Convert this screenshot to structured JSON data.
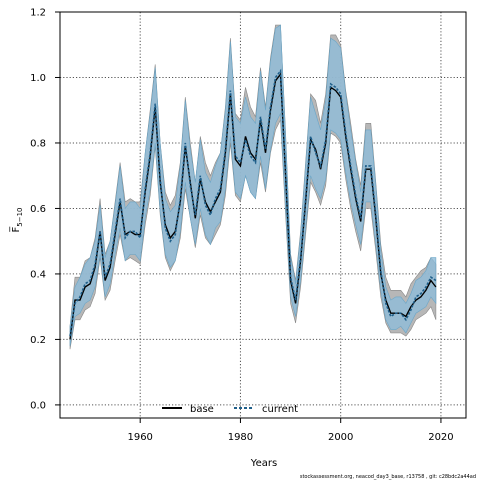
{
  "chart_data": {
    "type": "area",
    "xlabel": "Years",
    "ylabel": "F̅",
    "ylabel_sub": "5−10",
    "xlim": [
      1944,
      2025
    ],
    "ylim": [
      -0.04,
      1.2
    ],
    "x_ticks": [
      1960,
      1980,
      2000,
      2020
    ],
    "y_ticks": [
      0.0,
      0.2,
      0.4,
      0.6,
      0.8,
      1.0,
      1.2
    ],
    "y_tick_labels": [
      "0.0",
      "0.2",
      "0.4",
      "0.6",
      "0.8",
      "1.0",
      "1.2"
    ],
    "grid": true,
    "legend_position": "bottom-center",
    "footnote": "stockassessment.org, neacod_day3_base, r13758 , git: c28bdc2a44ad",
    "colors": {
      "base_band": "#aaaaaa",
      "current_band": "#8fbcd8",
      "base_line": "#000000",
      "current_line": "#1f5f8a"
    },
    "x": [
      1946,
      1947,
      1948,
      1949,
      1950,
      1951,
      1952,
      1953,
      1954,
      1955,
      1956,
      1957,
      1958,
      1959,
      1960,
      1961,
      1962,
      1963,
      1964,
      1965,
      1966,
      1967,
      1968,
      1969,
      1970,
      1971,
      1972,
      1973,
      1974,
      1975,
      1976,
      1977,
      1978,
      1979,
      1980,
      1981,
      1982,
      1983,
      1984,
      1985,
      1986,
      1987,
      1988,
      1989,
      1990,
      1991,
      1992,
      1993,
      1994,
      1995,
      1996,
      1997,
      1998,
      1999,
      2000,
      2001,
      2002,
      2003,
      2004,
      2005,
      2006,
      2007,
      2008,
      2009,
      2010,
      2011,
      2012,
      2013,
      2014,
      2015,
      2016,
      2017,
      2018,
      2019
    ],
    "series": [
      {
        "name": "base",
        "values": [
          0.2,
          0.32,
          0.32,
          0.36,
          0.37,
          0.42,
          0.53,
          0.38,
          0.42,
          0.52,
          0.62,
          0.52,
          0.53,
          0.52,
          0.52,
          0.65,
          0.76,
          0.91,
          0.68,
          0.55,
          0.51,
          0.53,
          0.62,
          0.79,
          0.68,
          0.57,
          0.69,
          0.62,
          0.59,
          0.62,
          0.65,
          0.77,
          0.95,
          0.75,
          0.73,
          0.82,
          0.77,
          0.75,
          0.87,
          0.77,
          0.9,
          0.99,
          1.01,
          0.7,
          0.38,
          0.31,
          0.44,
          0.62,
          0.81,
          0.78,
          0.72,
          0.8,
          0.97,
          0.96,
          0.94,
          0.82,
          0.72,
          0.63,
          0.56,
          0.72,
          0.72,
          0.57,
          0.4,
          0.32,
          0.28,
          0.28,
          0.28,
          0.27,
          0.3,
          0.32,
          0.33,
          0.35,
          0.38,
          0.36
        ]
      },
      {
        "name": "current",
        "values": [
          0.21,
          0.31,
          0.33,
          0.37,
          0.38,
          0.43,
          0.53,
          0.39,
          0.43,
          0.53,
          0.63,
          0.51,
          0.53,
          0.53,
          0.51,
          0.66,
          0.77,
          0.92,
          0.69,
          0.54,
          0.5,
          0.52,
          0.63,
          0.8,
          0.67,
          0.58,
          0.7,
          0.61,
          0.58,
          0.63,
          0.66,
          0.78,
          0.96,
          0.76,
          0.74,
          0.81,
          0.76,
          0.74,
          0.88,
          0.78,
          0.91,
          1.0,
          1.02,
          0.71,
          0.39,
          0.32,
          0.45,
          0.63,
          0.82,
          0.77,
          0.73,
          0.81,
          0.98,
          0.97,
          0.95,
          0.83,
          0.73,
          0.64,
          0.57,
          0.73,
          0.73,
          0.58,
          0.41,
          0.31,
          0.27,
          0.28,
          0.28,
          0.26,
          0.29,
          0.33,
          0.34,
          0.36,
          0.39,
          0.38
        ]
      }
    ],
    "bands": [
      {
        "name": "base",
        "lower": [
          0.17,
          0.26,
          0.26,
          0.29,
          0.3,
          0.34,
          0.45,
          0.32,
          0.35,
          0.44,
          0.52,
          0.44,
          0.45,
          0.44,
          0.43,
          0.55,
          0.64,
          0.79,
          0.58,
          0.45,
          0.41,
          0.44,
          0.51,
          0.66,
          0.57,
          0.48,
          0.58,
          0.51,
          0.49,
          0.52,
          0.55,
          0.64,
          0.8,
          0.64,
          0.62,
          0.7,
          0.65,
          0.63,
          0.74,
          0.65,
          0.77,
          0.84,
          0.87,
          0.58,
          0.31,
          0.25,
          0.36,
          0.52,
          0.68,
          0.65,
          0.61,
          0.67,
          0.83,
          0.82,
          0.8,
          0.69,
          0.6,
          0.53,
          0.47,
          0.6,
          0.6,
          0.47,
          0.33,
          0.25,
          0.22,
          0.22,
          0.22,
          0.21,
          0.23,
          0.26,
          0.27,
          0.28,
          0.3,
          0.26
        ],
        "upper": [
          0.24,
          0.39,
          0.39,
          0.44,
          0.45,
          0.51,
          0.63,
          0.46,
          0.5,
          0.62,
          0.74,
          0.62,
          0.63,
          0.62,
          0.62,
          0.77,
          0.9,
          1.04,
          0.8,
          0.65,
          0.61,
          0.64,
          0.74,
          0.94,
          0.8,
          0.68,
          0.82,
          0.74,
          0.7,
          0.74,
          0.77,
          0.91,
          1.12,
          0.89,
          0.87,
          0.97,
          0.91,
          0.88,
          1.03,
          0.91,
          1.06,
          1.16,
          1.16,
          0.83,
          0.46,
          0.38,
          0.53,
          0.74,
          0.95,
          0.93,
          0.86,
          0.95,
          1.13,
          1.13,
          1.1,
          0.96,
          0.86,
          0.75,
          0.67,
          0.86,
          0.86,
          0.68,
          0.49,
          0.39,
          0.35,
          0.35,
          0.35,
          0.33,
          0.37,
          0.39,
          0.41,
          0.42,
          0.45,
          0.43
        ]
      },
      {
        "name": "current",
        "lower": [
          0.18,
          0.27,
          0.28,
          0.31,
          0.32,
          0.36,
          0.46,
          0.33,
          0.37,
          0.46,
          0.54,
          0.44,
          0.46,
          0.46,
          0.44,
          0.57,
          0.66,
          0.8,
          0.59,
          0.46,
          0.42,
          0.44,
          0.53,
          0.68,
          0.57,
          0.49,
          0.6,
          0.52,
          0.49,
          0.54,
          0.56,
          0.66,
          0.82,
          0.65,
          0.63,
          0.7,
          0.65,
          0.63,
          0.76,
          0.66,
          0.78,
          0.86,
          0.89,
          0.6,
          0.33,
          0.27,
          0.38,
          0.54,
          0.7,
          0.66,
          0.63,
          0.69,
          0.84,
          0.83,
          0.81,
          0.71,
          0.62,
          0.55,
          0.49,
          0.62,
          0.62,
          0.49,
          0.35,
          0.26,
          0.23,
          0.23,
          0.24,
          0.22,
          0.25,
          0.28,
          0.29,
          0.3,
          0.33,
          0.31
        ],
        "upper": [
          0.24,
          0.36,
          0.39,
          0.43,
          0.45,
          0.5,
          0.61,
          0.45,
          0.5,
          0.61,
          0.73,
          0.6,
          0.62,
          0.62,
          0.6,
          0.77,
          0.89,
          1.03,
          0.8,
          0.63,
          0.59,
          0.61,
          0.73,
          0.93,
          0.78,
          0.68,
          0.81,
          0.71,
          0.68,
          0.73,
          0.77,
          0.9,
          1.11,
          0.88,
          0.86,
          0.94,
          0.88,
          0.86,
          1.02,
          0.9,
          1.05,
          1.15,
          1.16,
          0.82,
          0.45,
          0.37,
          0.52,
          0.73,
          0.94,
          0.89,
          0.84,
          0.93,
          1.12,
          1.11,
          1.09,
          0.95,
          0.84,
          0.74,
          0.65,
          0.84,
          0.84,
          0.67,
          0.47,
          0.36,
          0.32,
          0.33,
          0.33,
          0.31,
          0.34,
          0.38,
          0.39,
          0.41,
          0.45,
          0.45
        ]
      }
    ]
  }
}
